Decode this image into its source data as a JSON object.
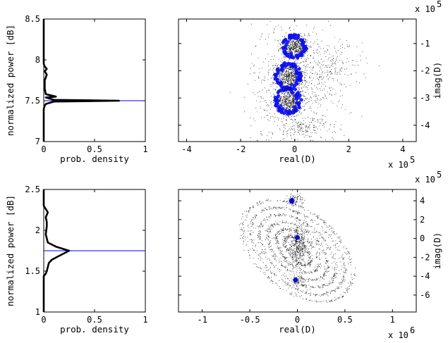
{
  "chart_data": [
    {
      "id": "top-density",
      "type": "line",
      "xlabel": "prob. density",
      "ylabel": "normalized power [dB]",
      "xlim": [
        0,
        1
      ],
      "ylim": [
        7,
        8.5
      ],
      "xticks": [
        0,
        0.5,
        1
      ],
      "xtick_labels": [
        "0",
        "0.5",
        "1"
      ],
      "yticks": [
        7,
        7.5,
        8,
        8.5
      ],
      "ytick_labels": [
        "7",
        "7.5",
        "8",
        "8.5"
      ],
      "series": [
        {
          "color": "#000000",
          "points": [
            [
              0,
              7.0
            ],
            [
              0,
              7.2
            ],
            [
              0,
              7.4
            ],
            [
              0.01,
              7.44
            ],
            [
              0.02,
              7.46
            ],
            [
              0.1,
              7.49
            ],
            [
              0.74,
              7.5
            ],
            [
              0.1,
              7.51
            ],
            [
              0.02,
              7.54
            ],
            [
              0.12,
              7.55
            ],
            [
              0.02,
              7.58
            ],
            [
              0.01,
              7.65
            ],
            [
              0.01,
              7.75
            ],
            [
              0.03,
              7.82
            ],
            [
              0.01,
              7.86
            ],
            [
              0.03,
              7.89
            ],
            [
              0.01,
              7.92
            ],
            [
              0,
              7.95
            ],
            [
              0,
              8.5
            ]
          ]
        }
      ],
      "hline": {
        "y": 7.5,
        "color": "#0000ff"
      },
      "grid": false
    },
    {
      "id": "top-scatter",
      "type": "scatter",
      "xlabel": "real(D)",
      "ylabel": "imag(D)",
      "x_exponent": "x 10",
      "x_exponent_power": "5",
      "y_exponent": "x 10",
      "y_exponent_power": "5",
      "xlim": [
        -4.3,
        4.5
      ],
      "ylim": [
        -4.6,
        -0.1
      ],
      "xticks": [
        -4,
        -2,
        0,
        2,
        4
      ],
      "xtick_labels": [
        "-4",
        "-2",
        "0",
        "2",
        "4"
      ],
      "yticks": [
        -4,
        -3,
        -2,
        -1
      ],
      "ytick_labels": [
        "-4",
        "-3",
        "-2",
        "-1"
      ],
      "y_axis_side": "right",
      "black_clusters": [
        {
          "cx": 0.0,
          "cy": -1.1,
          "sx": 0.25,
          "sy": 0.2,
          "n": 500
        },
        {
          "cx": -0.2,
          "cy": -2.2,
          "sx": 0.25,
          "sy": 0.25,
          "n": 550
        },
        {
          "cx": -0.2,
          "cy": -3.1,
          "sx": 0.25,
          "sy": 0.25,
          "n": 550
        },
        {
          "cx": 0.0,
          "cy": -2.5,
          "sx": 0.8,
          "sy": 1.2,
          "n": 700
        },
        {
          "cx": 0.3,
          "cy": -4.1,
          "sx": 0.6,
          "sy": 0.2,
          "n": 150
        },
        {
          "cx": 1.3,
          "cy": -1.9,
          "sx": 0.6,
          "sy": 0.5,
          "n": 200
        }
      ],
      "blue_clusters": [
        {
          "cx": 0.0,
          "cy": -1.1,
          "r": 0.45,
          "n": 70
        },
        {
          "cx": -0.25,
          "cy": -2.2,
          "r": 0.5,
          "n": 80
        },
        {
          "cx": -0.25,
          "cy": -3.1,
          "r": 0.5,
          "n": 80
        }
      ],
      "grid": false
    },
    {
      "id": "bottom-density",
      "type": "line",
      "xlabel": "prob. density",
      "ylabel": "normalized power [dB]",
      "xlim": [
        0,
        1
      ],
      "ylim": [
        1,
        2.5
      ],
      "xticks": [
        0,
        0.5,
        1
      ],
      "xtick_labels": [
        "0",
        "0.5",
        "1"
      ],
      "yticks": [
        1,
        1.5,
        2,
        2.5
      ],
      "ytick_labels": [
        "1",
        "1.5",
        "2",
        "2.5"
      ],
      "series": [
        {
          "color": "#000000",
          "points": [
            [
              0,
              1.0
            ],
            [
              0,
              1.3
            ],
            [
              0,
              1.44
            ],
            [
              0.02,
              1.47
            ],
            [
              0.03,
              1.5
            ],
            [
              0.04,
              1.55
            ],
            [
              0.05,
              1.6
            ],
            [
              0.08,
              1.64
            ],
            [
              0.14,
              1.68
            ],
            [
              0.25,
              1.75
            ],
            [
              0.12,
              1.8
            ],
            [
              0.04,
              1.85
            ],
            [
              0.02,
              1.95
            ],
            [
              0.03,
              2.05
            ],
            [
              0.03,
              2.1
            ],
            [
              0.02,
              2.16
            ],
            [
              0.04,
              2.22
            ],
            [
              0.02,
              2.26
            ],
            [
              0,
              2.3
            ],
            [
              0,
              2.5
            ]
          ]
        }
      ],
      "hline": {
        "y": 1.75,
        "color": "#0000ff"
      },
      "grid": false
    },
    {
      "id": "bottom-scatter",
      "type": "scatter",
      "xlabel": "real(D)",
      "ylabel": "imag(D)",
      "x_exponent": "x 10",
      "x_exponent_power": "6",
      "y_exponent": "x 10",
      "y_exponent_power": "5",
      "xlim": [
        -1.25,
        1.25
      ],
      "ylim": [
        -7.8,
        5.2
      ],
      "xticks": [
        -1,
        -0.5,
        0,
        0.5,
        1
      ],
      "xtick_labels": [
        "-1",
        "-0.5",
        "0",
        "0.5",
        "1"
      ],
      "yticks": [
        -6,
        -4,
        -2,
        0,
        2,
        4
      ],
      "ytick_labels": [
        "-6",
        "-4",
        "-2",
        "0",
        "2",
        "4"
      ],
      "y_axis_side": "right",
      "black_clusters": [
        {
          "cx": 0.0,
          "cy": -1.0,
          "sx": 0.05,
          "sy": 1.0,
          "n": 450
        },
        {
          "cx": -0.02,
          "cy": 4.2,
          "sx": 0.04,
          "sy": 0.3,
          "n": 80
        },
        {
          "cx": 0.0,
          "cy": -4.6,
          "sx": 0.04,
          "sy": 0.4,
          "n": 80
        }
      ],
      "black_orbits": [
        {
          "a": 0.1,
          "b": 1.6,
          "n": 220
        },
        {
          "a": 0.18,
          "b": 2.4,
          "n": 260
        },
        {
          "a": 0.26,
          "b": 3.2,
          "n": 300
        },
        {
          "a": 0.34,
          "b": 4.0,
          "n": 320
        },
        {
          "a": 0.42,
          "b": 4.8,
          "n": 340
        },
        {
          "a": 0.5,
          "b": 5.6,
          "n": 340
        }
      ],
      "orbit_center": {
        "x": 0.0,
        "y": -1.3
      },
      "orbit_tilt_deg": 18,
      "blue_clusters": [
        {
          "cx": -0.06,
          "cy": 4.0,
          "r": 0.12,
          "n": 25
        },
        {
          "cx": 0.0,
          "cy": 0.1,
          "r": 0.07,
          "n": 40
        },
        {
          "cx": -0.02,
          "cy": -4.4,
          "r": 0.08,
          "n": 25
        }
      ],
      "grid": false
    }
  ]
}
